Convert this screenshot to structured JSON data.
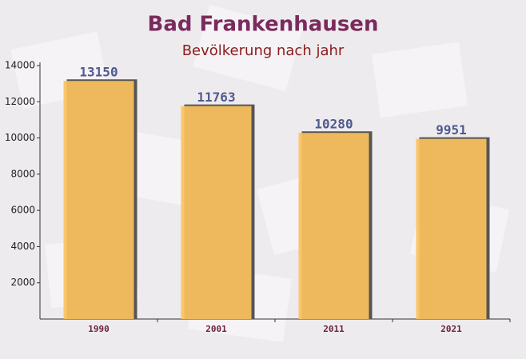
{
  "chart_data": {
    "type": "bar",
    "title": "Bad Frankenhausen",
    "subtitle": "Bevölkerung nach jahr",
    "categories": [
      "1990",
      "2001",
      "2011",
      "2021"
    ],
    "values": [
      13150,
      11763,
      10280,
      9951
    ],
    "color": "#fbc25d",
    "ylim": [
      0,
      14000
    ],
    "yticks": [
      2000,
      4000,
      6000,
      8000,
      10000,
      12000,
      14000
    ]
  }
}
